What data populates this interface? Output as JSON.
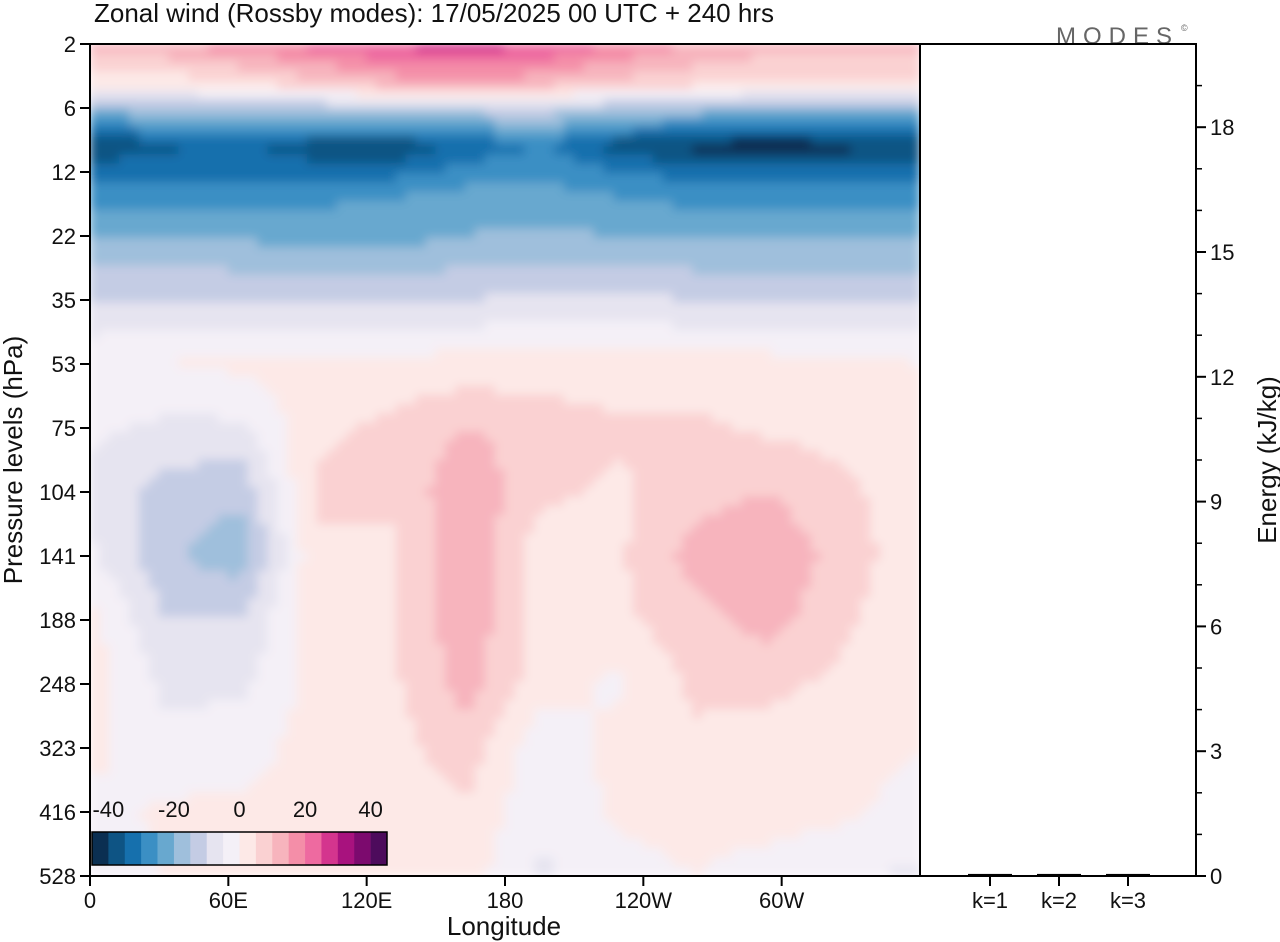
{
  "brand": {
    "logo_text": "MODES",
    "logo_mark": "©"
  },
  "chart_data": {
    "type": "heatmap",
    "title": "Zonal wind (Rossby modes):  17/05/2025  00 UTC  + 240 hrs",
    "panels": [
      {
        "id": "zonal-wind-section",
        "type": "heatmap",
        "xlabel": "Longitude",
        "ylabel": "Pressure levels (hPa)",
        "x_ticks": [
          "0",
          "60E",
          "120E",
          "180",
          "120W",
          "60W"
        ],
        "y_ticks": [
          "2",
          "6",
          "12",
          "22",
          "35",
          "53",
          "75",
          "104",
          "141",
          "188",
          "248",
          "323",
          "416",
          "528"
        ],
        "x_range": [
          "0",
          "360"
        ],
        "y_range": [
          2,
          528
        ],
        "colorbar": {
          "ticks": [
            "-40",
            "-20",
            "0",
            "20",
            "40"
          ],
          "colors": [
            "#0b2f52",
            "#0e5484",
            "#1670ad",
            "#3b8fc4",
            "#68a8cf",
            "#9fbfdc",
            "#c4cce4",
            "#e6e4f0",
            "#f4f0f7",
            "#fde9e7",
            "#fad1d2",
            "#f7b4bd",
            "#f48ea8",
            "#ee6aa0",
            "#d4358e",
            "#a8127e",
            "#7c0a6e",
            "#4d0b5c"
          ],
          "range": [
            -45,
            45
          ]
        },
        "series": [
          {
            "name": "",
            "z_rows": [
              {
                "level": 2,
                "wind": [
                  12,
                  14,
                  18,
                  22,
                  26,
                  28,
                  25,
                  20,
                  15,
                  12,
                  12,
                  12
                ]
              },
              {
                "level": 4,
                "wind": [
                  2,
                  2,
                  4,
                  8,
                  12,
                  14,
                  12,
                  8,
                  6,
                  4,
                  4,
                  4
                ]
              },
              {
                "level": 6,
                "wind": [
                  -18,
                  -16,
                  -14,
                  -14,
                  -12,
                  -12,
                  -12,
                  -14,
                  -16,
                  -18,
                  -18,
                  -18
                ]
              },
              {
                "level": 9,
                "wind": [
                  -40,
                  -36,
                  -34,
                  -38,
                  -40,
                  -34,
                  -30,
                  -38,
                  -42,
                  -44,
                  -42,
                  -40
                ]
              },
              {
                "level": 12,
                "wind": [
                  -32,
                  -32,
                  -32,
                  -33,
                  -32,
                  -28,
                  -26,
                  -30,
                  -32,
                  -32,
                  -32,
                  -32
                ]
              },
              {
                "level": 16,
                "wind": [
                  -26,
                  -26,
                  -27,
                  -26,
                  -24,
                  -22,
                  -22,
                  -24,
                  -26,
                  -26,
                  -26,
                  -26
                ]
              },
              {
                "level": 22,
                "wind": [
                  -20,
                  -20,
                  -21,
                  -22,
                  -22,
                  -20,
                  -19,
                  -20,
                  -21,
                  -21,
                  -21,
                  -21
                ]
              },
              {
                "level": 35,
                "wind": [
                  -10,
                  -10,
                  -10,
                  -11,
                  -11,
                  -10,
                  -9,
                  -9,
                  -10,
                  -10,
                  -10,
                  -10
                ]
              },
              {
                "level": 53,
                "wind": [
                  -1,
                  0,
                  1,
                  2,
                  2,
                  2,
                  2,
                  2,
                  2,
                  2,
                  1,
                  0
                ]
              },
              {
                "level": 75,
                "wind": [
                  -4,
                  -6,
                  -6,
                  4,
                  6,
                  10,
                  8,
                  6,
                  6,
                  4,
                  3,
                  1
                ]
              },
              {
                "level": 104,
                "wind": [
                  -6,
                  -12,
                  -14,
                  6,
                  6,
                  14,
                  6,
                  4,
                  8,
                  10,
                  6,
                  2
                ]
              },
              {
                "level": 141,
                "wind": [
                  -4,
                  -14,
                  -18,
                  4,
                  4,
                  14,
                  2,
                  4,
                  12,
                  14,
                  8,
                  1
                ]
              },
              {
                "level": 188,
                "wind": [
                  2,
                  -10,
                  -10,
                  3,
                  4,
                  14,
                  2,
                  4,
                  8,
                  12,
                  6,
                  1
                ]
              },
              {
                "level": 248,
                "wind": [
                  2,
                  -6,
                  -6,
                  2,
                  4,
                  12,
                  2,
                  -1,
                  6,
                  6,
                  4,
                  0
                ]
              },
              {
                "level": 323,
                "wind": [
                  2,
                  -4,
                  -2,
                  2,
                  3,
                  8,
                  -4,
                  2,
                  4,
                  3,
                  2,
                  0
                ]
              },
              {
                "level": 416,
                "wind": [
                  -2,
                  1,
                  1,
                  1,
                  2,
                  4,
                  -4,
                  1,
                  2,
                  2,
                  1,
                  -2
                ]
              },
              {
                "level": 528,
                "wind": [
                  -4,
                  0,
                  0,
                  1,
                  2,
                  2,
                  -6,
                  -2,
                  0,
                  -2,
                  -4,
                  -6
                ]
              }
            ]
          }
        ]
      },
      {
        "id": "energy-bars",
        "type": "bar",
        "ylabel": "Energy (kJ/kg)",
        "categories": [
          "k=1",
          "k=2",
          "k=3"
        ],
        "values": [
          0.05,
          0.05,
          0.05
        ],
        "y_ticks": [
          "0",
          "3",
          "6",
          "9",
          "12",
          "15",
          "18"
        ],
        "ylim": [
          0,
          20
        ]
      }
    ]
  }
}
